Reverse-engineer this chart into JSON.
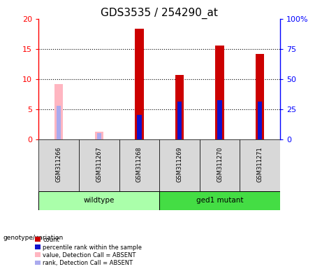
{
  "title": "GDS3535 / 254290_at",
  "samples": [
    "GSM311266",
    "GSM311267",
    "GSM311268",
    "GSM311269",
    "GSM311270",
    "GSM311271"
  ],
  "count_values": [
    0,
    0,
    18.4,
    10.7,
    15.6,
    14.2
  ],
  "rank_values": [
    0,
    0,
    20.0,
    31.5,
    32.5,
    31.5
  ],
  "absent_value": [
    9.2,
    1.2,
    0,
    0,
    0,
    0
  ],
  "absent_rank": [
    28.0,
    5.0,
    0,
    0,
    0,
    0
  ],
  "count_color": "#CC0000",
  "rank_color": "#1111CC",
  "absent_value_color": "#FFB6C1",
  "absent_rank_color": "#AAAAEE",
  "ylim_left": [
    0,
    20
  ],
  "ylim_right": [
    0,
    100
  ],
  "yticks_left": [
    0,
    5,
    10,
    15,
    20
  ],
  "yticks_right": [
    0,
    25,
    50,
    75,
    100
  ],
  "ytick_labels_right": [
    "0",
    "25",
    "50",
    "75",
    "100%"
  ],
  "background_color": "#D8D8D8",
  "plot_bg": "#FFFFFF",
  "wt_color": "#AAFFAA",
  "ged_color": "#44DD44",
  "title_fontsize": 11,
  "bar_width": 0.12,
  "rank_bar_width": 0.08
}
